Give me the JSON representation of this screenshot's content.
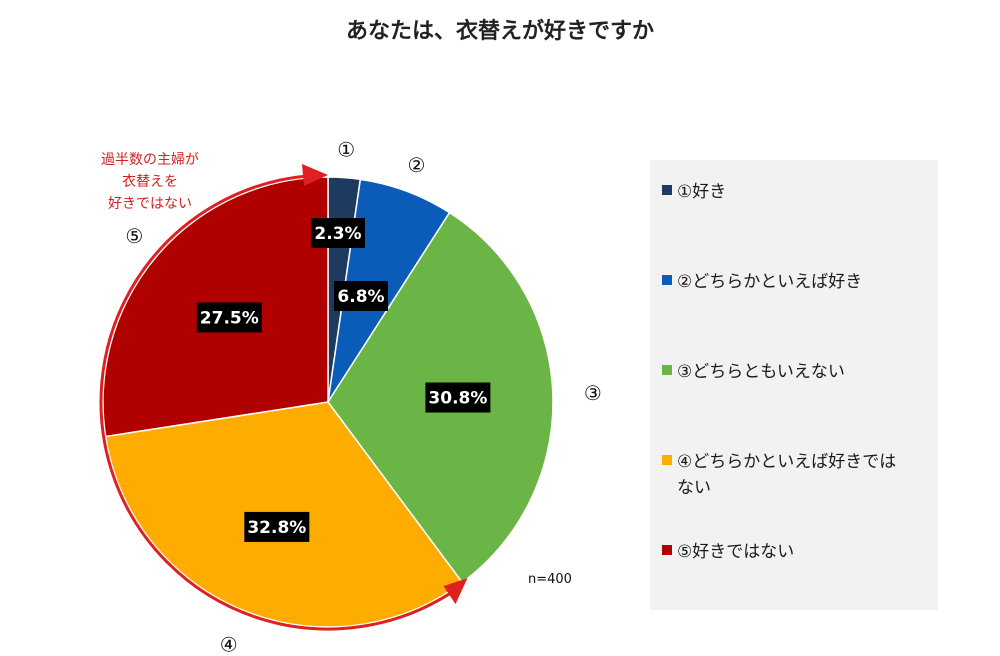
{
  "chart_data": {
    "type": "pie",
    "title": "あなたは、衣替えが好きですか",
    "sample_size": "n=400",
    "annotation_lines": [
      "過半数の主婦が",
      "衣替えを",
      "好きではない"
    ],
    "slices": [
      {
        "marker": "①",
        "label": "①好き",
        "value": 2.3,
        "value_label": "2.3%",
        "color": "#1f3a5f"
      },
      {
        "marker": "②",
        "label": "②どちらかといえば好き",
        "value": 6.8,
        "value_label": "6.8%",
        "color": "#0a5cb8"
      },
      {
        "marker": "③",
        "label": "③どちらともいえない",
        "value": 30.8,
        "value_label": "30.8%",
        "color": "#6ab545"
      },
      {
        "marker": "④",
        "label": "④どちらかといえば好きでは",
        "label_cont": "ない",
        "value": 32.8,
        "value_label": "32.8%",
        "color": "#ffac00"
      },
      {
        "marker": "⑤",
        "label": "⑤好きではない",
        "value": 27.5,
        "value_label": "27.5%",
        "color": "#b00000"
      }
    ],
    "annotation_color": "#e02020",
    "legend_bg": "#f2f2f2"
  }
}
